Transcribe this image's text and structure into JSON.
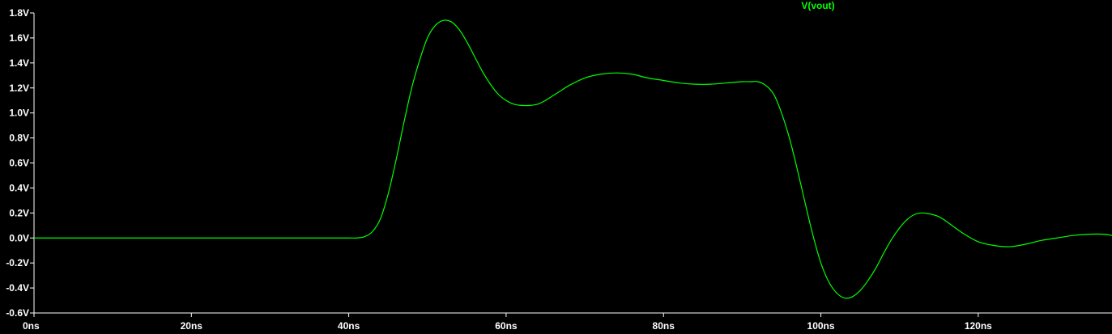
{
  "chart_data": {
    "type": "line",
    "title": "",
    "xlabel": "",
    "ylabel": "",
    "x_unit": "ns",
    "y_unit": "V",
    "xlim": [
      0,
      137
    ],
    "ylim": [
      -0.6,
      1.8
    ],
    "x_ticks": [
      0,
      20,
      40,
      60,
      80,
      100,
      120
    ],
    "x_tick_labels": [
      "0ns",
      "20ns",
      "40ns",
      "60ns",
      "80ns",
      "100ns",
      "120ns"
    ],
    "y_ticks": [
      1.8,
      1.6,
      1.4,
      1.2,
      1.0,
      0.8,
      0.6,
      0.4,
      0.2,
      0.0,
      -0.2,
      -0.4,
      -0.6
    ],
    "y_tick_labels": [
      "1.8V",
      "1.6V",
      "1.4V",
      "1.2V",
      "1.0V",
      "0.8V",
      "0.6V",
      "0.4V",
      "0.2V",
      "0.0V",
      "-0.2V",
      "-0.4V",
      "-0.6V"
    ],
    "grid": false,
    "legend_position": "top-center",
    "background_color": "#000000",
    "axis_color": "#ffffff",
    "series": [
      {
        "name": "V(vout)",
        "color": "#00ff00",
        "x": [
          0,
          10,
          20,
          30,
          38,
          40,
          41,
          42,
          43,
          44,
          45,
          46,
          47,
          48,
          49,
          50,
          51,
          52,
          53,
          54,
          55,
          56,
          57,
          58,
          59,
          60,
          61,
          62,
          63,
          64,
          65,
          66,
          67,
          68,
          70,
          72,
          74,
          76,
          78,
          80,
          82,
          84,
          86,
          88,
          90,
          91,
          92,
          93,
          94,
          95,
          96,
          97,
          98,
          99,
          100,
          101,
          102,
          103,
          104,
          105,
          106,
          107,
          108,
          109,
          110,
          111,
          112,
          113,
          114,
          115,
          116,
          118,
          120,
          122,
          124,
          126,
          128,
          130,
          132,
          134,
          136,
          137
        ],
        "y": [
          0.0,
          0.0,
          0.0,
          0.0,
          0.0,
          0.0,
          0.0,
          0.01,
          0.05,
          0.15,
          0.35,
          0.62,
          0.92,
          1.2,
          1.42,
          1.6,
          1.7,
          1.74,
          1.73,
          1.67,
          1.57,
          1.45,
          1.33,
          1.23,
          1.15,
          1.1,
          1.07,
          1.06,
          1.06,
          1.07,
          1.1,
          1.14,
          1.18,
          1.22,
          1.28,
          1.31,
          1.32,
          1.31,
          1.28,
          1.26,
          1.24,
          1.23,
          1.23,
          1.24,
          1.25,
          1.25,
          1.25,
          1.22,
          1.15,
          1.0,
          0.8,
          0.55,
          0.28,
          0.02,
          -0.2,
          -0.35,
          -0.44,
          -0.48,
          -0.47,
          -0.42,
          -0.34,
          -0.24,
          -0.12,
          -0.01,
          0.08,
          0.15,
          0.19,
          0.2,
          0.19,
          0.17,
          0.13,
          0.04,
          -0.03,
          -0.06,
          -0.07,
          -0.05,
          -0.02,
          0.0,
          0.02,
          0.03,
          0.03,
          0.02
        ]
      }
    ]
  }
}
